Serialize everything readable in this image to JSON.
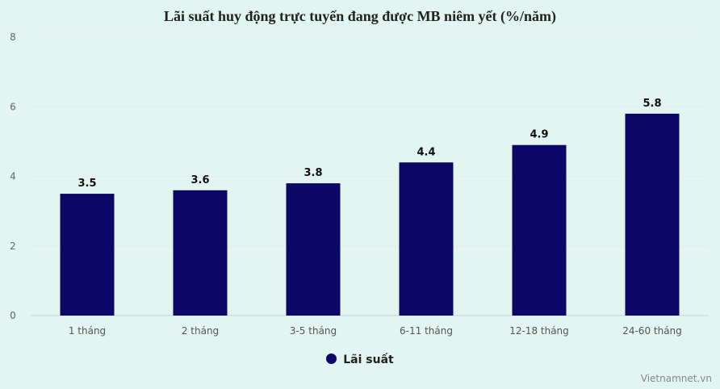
{
  "chart_data": {
    "type": "bar",
    "title": "Lãi suất huy động trực tuyến đang được MB niêm yết (%/năm)",
    "categories": [
      "1 tháng",
      "2 tháng",
      "3-5 tháng",
      "6-11 tháng",
      "12-18 tháng",
      "24-60 tháng"
    ],
    "series": [
      {
        "name": "Lãi suất",
        "values": [
          3.5,
          3.6,
          3.8,
          4.4,
          4.9,
          5.8
        ],
        "color": "#0b0766"
      }
    ],
    "xlabel": "",
    "ylabel": "",
    "ylim": [
      0,
      8
    ],
    "yticks": [
      0,
      2,
      4,
      6,
      8
    ],
    "grid": true,
    "legend": "bottom-center"
  },
  "credit": "Vietnamnet.vn"
}
